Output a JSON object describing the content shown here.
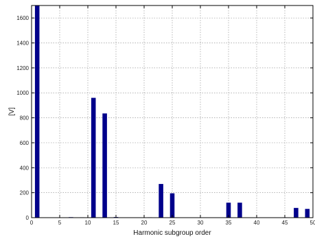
{
  "chart_data": {
    "type": "bar",
    "title": "",
    "xlabel": "Harmonic subgroup order",
    "ylabel": "[V]",
    "xlim": [
      0,
      50
    ],
    "ylim": [
      0,
      1700
    ],
    "grid": true,
    "bar_color": "#00008b",
    "xticks": [
      0,
      5,
      10,
      15,
      20,
      25,
      30,
      35,
      40,
      45,
      50
    ],
    "yticks": [
      0,
      200,
      400,
      600,
      800,
      1000,
      1200,
      1400,
      1600
    ],
    "series": [
      {
        "x": [
          1,
          3,
          5,
          7,
          9,
          11,
          13,
          15,
          17,
          19,
          21,
          23,
          25,
          27,
          29,
          31,
          33,
          35,
          37,
          39,
          41,
          43,
          45,
          47,
          49
        ],
        "values": [
          1700,
          0,
          0,
          4,
          3,
          960,
          835,
          5,
          0,
          0,
          3,
          270,
          195,
          0,
          0,
          0,
          0,
          120,
          120,
          0,
          0,
          0,
          3,
          78,
          70
        ]
      }
    ]
  }
}
